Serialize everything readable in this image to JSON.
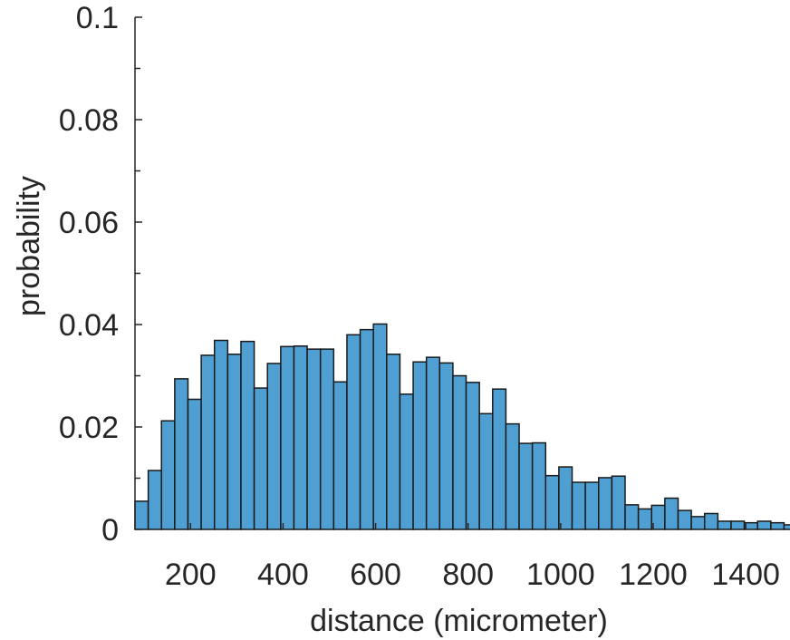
{
  "chart_data": {
    "type": "bar",
    "title": "",
    "xlabel": "distance (micrometer)",
    "ylabel": "probability",
    "xlim": [
      80,
      1480
    ],
    "ylim": [
      0,
      0.1
    ],
    "xticks": [
      200,
      400,
      600,
      800,
      1000,
      1200,
      1400
    ],
    "xtick_labels": [
      "200",
      "400",
      "600",
      "800",
      "1000",
      "1200",
      "1400"
    ],
    "yticks": [
      0,
      0.02,
      0.04,
      0.06,
      0.08,
      0.1
    ],
    "ytick_labels": [
      "0",
      "0.02",
      "0.04",
      "0.06",
      "0.08",
      "0.1"
    ],
    "yminor_step": 0.01,
    "grid": false,
    "bin_start": 80,
    "bin_width": 28.63,
    "values": [
      0.0055,
      0.0115,
      0.0212,
      0.0294,
      0.0254,
      0.034,
      0.0369,
      0.0342,
      0.0367,
      0.0276,
      0.0324,
      0.0357,
      0.0358,
      0.0352,
      0.0352,
      0.0288,
      0.038,
      0.039,
      0.0401,
      0.0342,
      0.0264,
      0.0327,
      0.0336,
      0.0325,
      0.03,
      0.0287,
      0.0226,
      0.0274,
      0.0206,
      0.0168,
      0.0169,
      0.0105,
      0.0122,
      0.0092,
      0.0092,
      0.0101,
      0.0104,
      0.0048,
      0.004,
      0.0047,
      0.0061,
      0.0037,
      0.0025,
      0.0031,
      0.0016,
      0.0016,
      0.0013,
      0.0016,
      0.0013,
      0.0009
    ],
    "colors": {
      "bar_fill": "#4f9fd3",
      "bar_edge": "#1a1a1a",
      "axis": "#262626"
    }
  }
}
